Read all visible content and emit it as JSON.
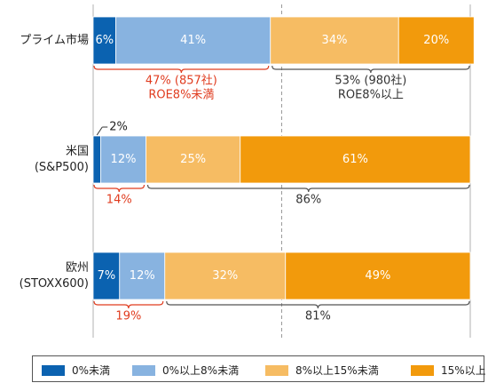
{
  "chart_data": {
    "type": "bar",
    "orientation": "horizontal",
    "stacked": true,
    "percent_scale": true,
    "categories": [
      [
        "プライム市場"
      ],
      [
        "米国",
        "(S&P500)"
      ],
      [
        "欧州",
        "(STOXX600)"
      ]
    ],
    "series": [
      {
        "name": "0%未満",
        "color": "#0b62b0",
        "values": [
          6,
          2,
          7
        ],
        "labels": [
          "6%",
          "2%",
          "7%"
        ]
      },
      {
        "name": "0%以上8%未満",
        "color": "#88b3e0",
        "values": [
          41,
          12,
          12
        ],
        "labels": [
          "41%",
          "12%",
          "12%"
        ]
      },
      {
        "name": "8%以上15%未満",
        "color": "#f6bc63",
        "values": [
          34,
          25,
          32
        ],
        "labels": [
          "34%",
          "25%",
          "32%"
        ]
      },
      {
        "name": "15%以上",
        "color": "#f29a0c",
        "values": [
          20,
          61,
          49
        ],
        "labels": [
          "20%",
          "61%",
          "49%"
        ]
      }
    ],
    "groups": [
      {
        "low": {
          "lines": [
            "47% (857社)",
            "ROE8%未満"
          ]
        },
        "high": {
          "lines": [
            "53% (980社)",
            "ROE8%以上"
          ]
        }
      },
      {
        "low": {
          "lines": [
            "14%"
          ]
        },
        "high": {
          "lines": [
            "86%"
          ]
        }
      },
      {
        "low": {
          "lines": [
            "19%"
          ]
        },
        "high": {
          "lines": [
            "81%"
          ]
        }
      }
    ],
    "low_color": "#e03c1f",
    "high_color": "#333333",
    "reference_lines": [
      0,
      50,
      100
    ],
    "legend_position": "bottom"
  }
}
